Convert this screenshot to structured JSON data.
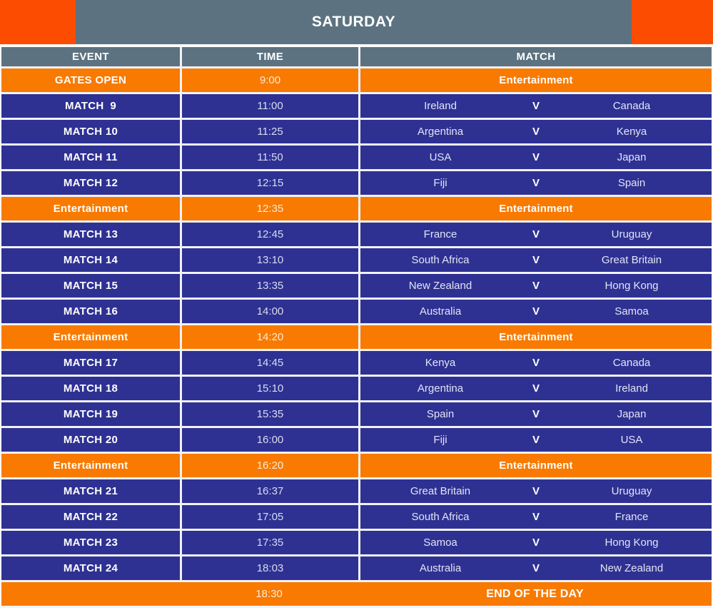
{
  "banner": {
    "title": "SATURDAY"
  },
  "columns": {
    "event": "EVENT",
    "time": "TIME",
    "match": "MATCH"
  },
  "labels": {
    "vs": "V"
  },
  "colors": {
    "corner_orange": "#FC4C02",
    "row_orange": "#F87A00",
    "row_navy": "#2E3192",
    "header_gray": "#5C7280",
    "text_white": "#FFFFFF"
  },
  "rows": [
    {
      "type": "open",
      "event": "GATES OPEN",
      "time": "9:00",
      "label": "Entertainment"
    },
    {
      "type": "match",
      "event": "MATCH  9",
      "time": "11:00",
      "home": "Ireland",
      "away": "Canada"
    },
    {
      "type": "match",
      "event": "MATCH 10",
      "time": "11:25",
      "home": "Argentina",
      "away": "Kenya"
    },
    {
      "type": "match",
      "event": "MATCH 11",
      "time": "11:50",
      "home": "USA",
      "away": "Japan"
    },
    {
      "type": "match",
      "event": "MATCH 12",
      "time": "12:15",
      "home": "Fiji",
      "away": "Spain"
    },
    {
      "type": "entertainment",
      "event": "Entertainment",
      "time": "12:35",
      "label": "Entertainment"
    },
    {
      "type": "match",
      "event": "MATCH 13",
      "time": "12:45",
      "home": "France",
      "away": "Uruguay"
    },
    {
      "type": "match",
      "event": "MATCH 14",
      "time": "13:10",
      "home": "South Africa",
      "away": "Great Britain"
    },
    {
      "type": "match",
      "event": "MATCH 15",
      "time": "13:35",
      "home": "New Zealand",
      "away": "Hong Kong"
    },
    {
      "type": "match",
      "event": "MATCH 16",
      "time": "14:00",
      "home": "Australia",
      "away": "Samoa"
    },
    {
      "type": "entertainment",
      "event": "Entertainment",
      "time": "14:20",
      "label": "Entertainment"
    },
    {
      "type": "match",
      "event": "MATCH 17",
      "time": "14:45",
      "home": "Kenya",
      "away": "Canada"
    },
    {
      "type": "match",
      "event": "MATCH 18",
      "time": "15:10",
      "home": "Argentina",
      "away": "Ireland"
    },
    {
      "type": "match",
      "event": "MATCH 19",
      "time": "15:35",
      "home": "Spain",
      "away": "Japan"
    },
    {
      "type": "match",
      "event": "MATCH 20",
      "time": "16:00",
      "home": "Fiji",
      "away": "USA"
    },
    {
      "type": "entertainment",
      "event": "Entertainment",
      "time": "16:20",
      "label": "Entertainment"
    },
    {
      "type": "match",
      "event": "MATCH 21",
      "time": "16:37",
      "home": "Great Britain",
      "away": "Uruguay"
    },
    {
      "type": "match",
      "event": "MATCH 22",
      "time": "17:05",
      "home": "South Africa",
      "away": "France"
    },
    {
      "type": "match",
      "event": "MATCH 23",
      "time": "17:35",
      "home": "Samoa",
      "away": "Hong Kong"
    },
    {
      "type": "match",
      "event": "MATCH 24",
      "time": "18:03",
      "home": "Australia",
      "away": "New Zealand"
    },
    {
      "type": "end",
      "event": "",
      "time": "18:30",
      "label": "END OF THE DAY"
    }
  ]
}
